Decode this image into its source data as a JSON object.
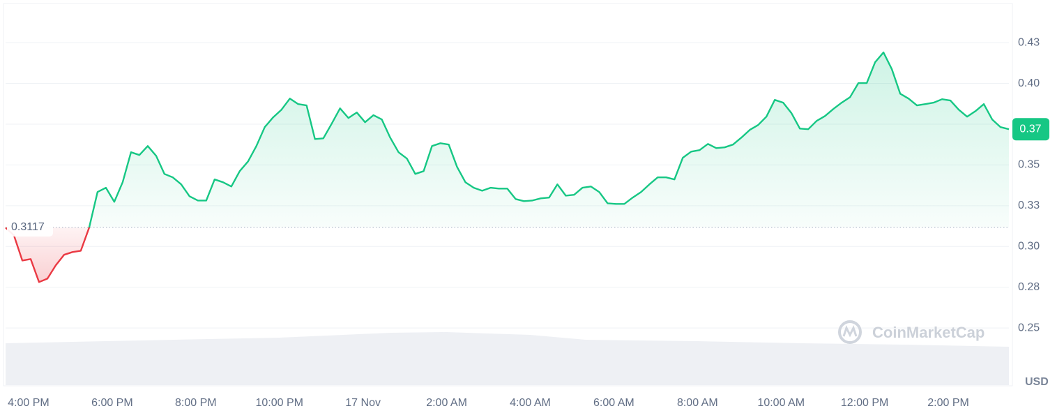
{
  "chart_data": {
    "type": "line",
    "currency": "USD",
    "watermark": "CoinMarketCap",
    "baseline": 0.3117,
    "current_label": "0.37",
    "up_color": "#16c784",
    "down_color": "#ea3943",
    "grid": true,
    "xlim": [
      15.45,
      39.45
    ],
    "ylim": [
      0.215,
      0.449
    ],
    "xticks": [
      {
        "value": 16,
        "label": "4:00 PM"
      },
      {
        "value": 18,
        "label": "6:00 PM"
      },
      {
        "value": 20,
        "label": "8:00 PM"
      },
      {
        "value": 22,
        "label": "10:00 PM"
      },
      {
        "value": 24,
        "label": "17 Nov"
      },
      {
        "value": 26,
        "label": "2:00 AM"
      },
      {
        "value": 28,
        "label": "4:00 AM"
      },
      {
        "value": 30,
        "label": "6:00 AM"
      },
      {
        "value": 32,
        "label": "8:00 AM"
      },
      {
        "value": 34,
        "label": "10:00 AM"
      },
      {
        "value": 36,
        "label": "12:00 PM"
      },
      {
        "value": 38,
        "label": "2:00 PM"
      }
    ],
    "yticks": [
      0.25,
      {
        "value": 0.275,
        "label": "0.28"
      },
      {
        "value": 0.3,
        "label": "0.30"
      },
      {
        "value": 0.325,
        "label": "0.33"
      },
      0.35,
      {
        "value": 0.375,
        "label": "0.37"
      },
      {
        "value": 0.4,
        "label": "0.40"
      },
      {
        "value": 0.425,
        "label": "0.43"
      }
    ],
    "x": [
      15.45,
      15.65,
      15.85,
      16.05,
      16.25,
      16.45,
      16.65,
      16.85,
      17.05,
      17.25,
      17.45,
      17.65,
      17.85,
      18.05,
      18.25,
      18.45,
      18.65,
      18.85,
      19.05,
      19.25,
      19.45,
      19.65,
      19.85,
      20.05,
      20.25,
      20.45,
      20.65,
      20.85,
      21.05,
      21.25,
      21.45,
      21.65,
      21.85,
      22.05,
      22.25,
      22.45,
      22.65,
      22.85,
      23.05,
      23.25,
      23.45,
      23.65,
      23.85,
      24.05,
      24.25,
      24.45,
      24.65,
      24.85,
      25.05,
      25.25,
      25.45,
      25.65,
      25.85,
      26.05,
      26.25,
      26.45,
      26.65,
      26.85,
      27.05,
      27.25,
      27.45,
      27.65,
      27.85,
      28.05,
      28.25,
      28.45,
      28.65,
      28.85,
      29.05,
      29.25,
      29.45,
      29.65,
      29.85,
      30.05,
      30.25,
      30.45,
      30.65,
      30.85,
      31.05,
      31.25,
      31.45,
      31.65,
      31.85,
      32.05,
      32.25,
      32.45,
      32.65,
      32.85,
      33.05,
      33.25,
      33.45,
      33.65,
      33.85,
      34.05,
      34.25,
      34.45,
      34.65,
      34.85,
      35.05,
      35.25,
      35.45,
      35.65,
      35.85,
      36.05,
      36.25,
      36.45,
      36.65,
      36.85,
      37.05,
      37.25,
      37.45,
      37.65,
      37.85,
      38.05,
      38.25,
      38.45,
      38.65,
      38.85,
      39.05,
      39.25,
      39.45
    ],
    "values": [
      0.3116,
      0.3068,
      0.2914,
      0.2923,
      0.2782,
      0.2803,
      0.2884,
      0.2949,
      0.2966,
      0.2974,
      0.3116,
      0.3334,
      0.336,
      0.3274,
      0.3394,
      0.3578,
      0.3561,
      0.3616,
      0.3556,
      0.3445,
      0.3424,
      0.3381,
      0.3308,
      0.3282,
      0.3282,
      0.3411,
      0.3394,
      0.3368,
      0.3462,
      0.3522,
      0.3616,
      0.3732,
      0.3792,
      0.3839,
      0.3907,
      0.3873,
      0.3865,
      0.3659,
      0.3663,
      0.3753,
      0.3847,
      0.3788,
      0.3822,
      0.3762,
      0.3805,
      0.3779,
      0.3668,
      0.3578,
      0.3539,
      0.3445,
      0.3462,
      0.3616,
      0.3633,
      0.3625,
      0.3488,
      0.3394,
      0.336,
      0.3342,
      0.336,
      0.3355,
      0.3355,
      0.3291,
      0.3278,
      0.3282,
      0.3295,
      0.33,
      0.3381,
      0.3312,
      0.3317,
      0.336,
      0.3368,
      0.3334,
      0.3265,
      0.3261,
      0.3261,
      0.33,
      0.3334,
      0.3381,
      0.3424,
      0.3424,
      0.3411,
      0.3544,
      0.3582,
      0.3591,
      0.3629,
      0.3603,
      0.3608,
      0.3625,
      0.3668,
      0.3715,
      0.3745,
      0.3796,
      0.3899,
      0.3882,
      0.3817,
      0.3723,
      0.3719,
      0.377,
      0.38,
      0.3843,
      0.3882,
      0.3916,
      0.4002,
      0.4002,
      0.413,
      0.419,
      0.4087,
      0.3937,
      0.3907,
      0.3865,
      0.3873,
      0.3882,
      0.3903,
      0.3895,
      0.3839,
      0.3796,
      0.383,
      0.3873,
      0.3779,
      0.3732,
      0.3719
    ]
  }
}
